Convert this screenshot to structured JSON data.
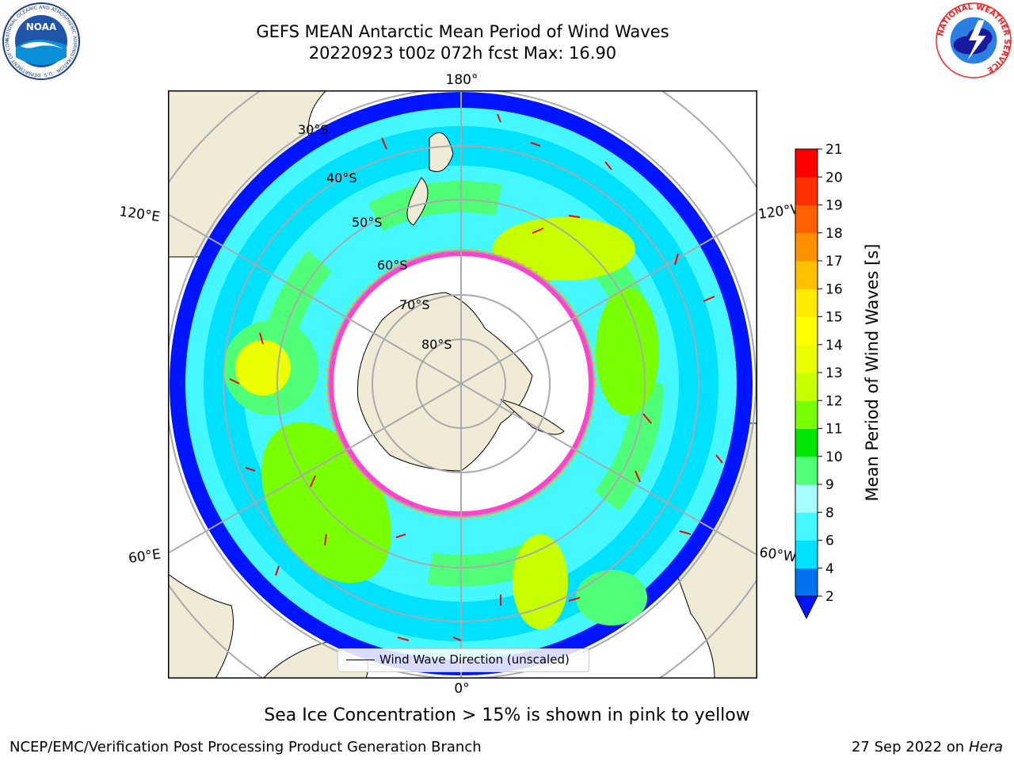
{
  "header": {
    "title_line1": "GEFS MEAN Antarctic Mean Period of Wind Waves",
    "title_line2": "20220923 t00z 072h fcst   Max: 16.90"
  },
  "logos": {
    "noaa": {
      "text": "NOAA",
      "ring_text": "NATIONAL OCEANIC AND ATMOSPHERIC ADMINISTRATION · U.S. DEPARTMENT OF COMMERCE"
    },
    "nws": {
      "ring_text": "NATIONAL WEATHER SERVICE"
    }
  },
  "map": {
    "projection": "south-polar-stereographic",
    "lon_labels": {
      "top": "180°",
      "bottom": "0°",
      "left_upper": "120°E",
      "left_lower": "60°E",
      "right_upper": "120°W",
      "right_lower": "60°W"
    },
    "lat_labels": [
      "30°S",
      "40°S",
      "50°S",
      "60°S",
      "70°S",
      "80°S"
    ],
    "legend": {
      "label": "Wind Wave Direction (unscaled)"
    },
    "colors": {
      "land": "#efebd6",
      "ice_edge": "#ff44cc"
    }
  },
  "colorbar": {
    "label": "Mean Period of Wind Waves [s]",
    "ticks": [
      "2",
      "4",
      "6",
      "8",
      "9",
      "10",
      "11",
      "12",
      "13",
      "14",
      "15",
      "16",
      "17",
      "18",
      "19",
      "20",
      "21"
    ],
    "colors": [
      "#0074f0",
      "#00e0ff",
      "#45f7ff",
      "#a8ffff",
      "#50ff78",
      "#00e600",
      "#78ff00",
      "#c8ff00",
      "#ecff00",
      "#ffff00",
      "#ffea00",
      "#ffc000",
      "#ff9000",
      "#ff6000",
      "#ff3000",
      "#ff0000"
    ],
    "extend_color": "#0014ff"
  },
  "footer": {
    "note": "Sea Ice Concentration > 15% is shown in pink to yellow",
    "credit": "NCEP/EMC/Verification Post Processing Product Generation Branch",
    "date": "27 Sep 2022 on",
    "host": "Hera"
  }
}
